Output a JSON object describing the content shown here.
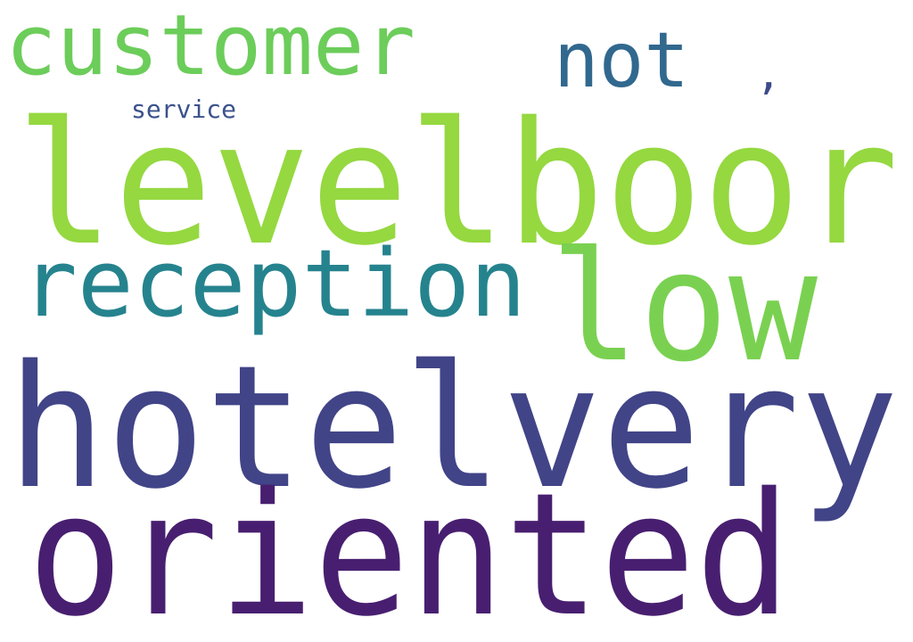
{
  "words": [
    {
      "key": "customer",
      "text": "customer",
      "color": "#6ccd5a"
    },
    {
      "key": "not",
      "text": "not",
      "color": "#31688e"
    },
    {
      "key": "comma",
      "text": ",",
      "color": "#3e4a89"
    },
    {
      "key": "service",
      "text": "service",
      "color": "#3b528b"
    },
    {
      "key": "levelboor",
      "text": "levelboor",
      "color": "#95d840"
    },
    {
      "key": "reception",
      "text": "reception",
      "color": "#25838e"
    },
    {
      "key": "low",
      "text": "low",
      "color": "#7ad151"
    },
    {
      "key": "hotelvery",
      "text": "hotelvery",
      "color": "#414487"
    },
    {
      "key": "oriented",
      "text": "oriented",
      "color": "#481f70"
    }
  ]
}
